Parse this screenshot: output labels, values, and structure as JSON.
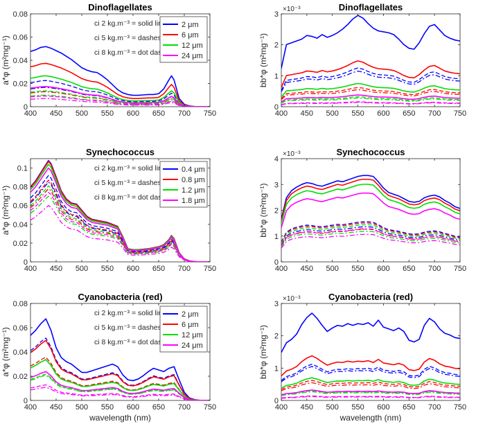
{
  "colors": {
    "c0": "#0000FF",
    "c1": "#FF0000",
    "c2": "#00DD00",
    "c3": "#FF00FF"
  },
  "chart_data": [
    {
      "type": "line",
      "quantity": "absorption",
      "title": "Dinoflagellates",
      "xlabel": "",
      "ylabel": "a*φ (m²mg⁻¹)",
      "xlim": [
        400,
        750
      ],
      "ylim": [
        0,
        0.08
      ],
      "xticks": [
        400,
        450,
        500,
        550,
        600,
        650,
        700,
        750
      ],
      "yticks": [
        0,
        0.02,
        0.04,
        0.06,
        0.08
      ],
      "ytick_labels": [
        "0",
        "0.02",
        "0.04",
        "0.06",
        "0.08"
      ],
      "multiplier": "",
      "legend": {
        "placement": "top-right",
        "entries": [
          "2 μm",
          "6 μm",
          "12 μm",
          "24 μm"
        ]
      },
      "notes": [
        "ci 2 kg.m⁻³ = solid line",
        "ci 5 kg.m⁻³ = dashes",
        "ci 8 kg.m⁻³ = dot dash"
      ],
      "x": [
        400,
        410,
        420,
        430,
        440,
        450,
        460,
        470,
        480,
        490,
        500,
        510,
        520,
        530,
        540,
        550,
        560,
        570,
        580,
        590,
        600,
        610,
        620,
        630,
        640,
        650,
        660,
        670,
        675,
        680,
        690,
        700,
        710,
        720,
        730,
        740,
        750
      ],
      "base": [
        0.68,
        0.7,
        0.73,
        0.74,
        0.72,
        0.69,
        0.66,
        0.62,
        0.58,
        0.53,
        0.48,
        0.45,
        0.43,
        0.42,
        0.38,
        0.33,
        0.27,
        0.21,
        0.17,
        0.15,
        0.14,
        0.14,
        0.145,
        0.15,
        0.15,
        0.16,
        0.22,
        0.33,
        0.38,
        0.33,
        0.1,
        0.03,
        0.01,
        0.002,
        0,
        0,
        0
      ],
      "series": [
        {
          "name": "2 μm",
          "scale": [
            0.07,
            0.0305,
            0.0225
          ]
        },
        {
          "name": "6 μm",
          "scale": [
            0.0505,
            0.0235,
            0.0175
          ]
        },
        {
          "name": "12 μm",
          "scale": [
            0.036,
            0.0185,
            0.0135
          ]
        },
        {
          "name": "24 μm",
          "scale": [
            0.0235,
            0.0125,
            0.0095
          ]
        }
      ]
    },
    {
      "type": "line",
      "quantity": "backscattering",
      "title": "Dinoflagellates",
      "xlabel": "",
      "ylabel": "bb*φ (m²mg⁻¹)",
      "xlim": [
        400,
        750
      ],
      "ylim": [
        0,
        3
      ],
      "xticks": [
        400,
        450,
        500,
        550,
        600,
        650,
        700,
        750
      ],
      "yticks": [
        0,
        1,
        2,
        3
      ],
      "ytick_labels": [
        "0",
        "1",
        "2",
        "3"
      ],
      "multiplier": "×10⁻³",
      "legend": null,
      "notes": [],
      "x": [
        400,
        410,
        420,
        430,
        440,
        450,
        460,
        470,
        480,
        490,
        500,
        510,
        520,
        530,
        540,
        550,
        560,
        570,
        580,
        590,
        600,
        610,
        620,
        630,
        640,
        650,
        660,
        670,
        680,
        690,
        700,
        710,
        720,
        730,
        740,
        750
      ],
      "base": [
        0.42,
        0.68,
        0.7,
        0.72,
        0.74,
        0.78,
        0.77,
        0.75,
        0.79,
        0.76,
        0.78,
        0.81,
        0.85,
        0.9,
        0.96,
        1.0,
        0.97,
        0.91,
        0.86,
        0.83,
        0.82,
        0.81,
        0.79,
        0.74,
        0.68,
        0.64,
        0.63,
        0.7,
        0.8,
        0.88,
        0.9,
        0.84,
        0.78,
        0.75,
        0.73,
        0.72
      ],
      "series": [
        {
          "name": "2 μm",
          "scale": [
            2.95,
            1.25,
            1.15
          ]
        },
        {
          "name": "6 μm",
          "scale": [
            1.48,
            0.62,
            0.55
          ]
        },
        {
          "name": "12 μm",
          "scale": [
            0.75,
            0.32,
            0.28
          ]
        },
        {
          "name": "24 μm",
          "scale": [
            0.38,
            0.16,
            0.14
          ]
        }
      ]
    },
    {
      "type": "line",
      "quantity": "absorption",
      "title": "Synechococcus",
      "xlabel": "",
      "ylabel": "a*φ (m²mg⁻¹)",
      "xlim": [
        400,
        750
      ],
      "ylim": [
        0,
        0.11
      ],
      "xticks": [
        400,
        450,
        500,
        550,
        600,
        650,
        700,
        750
      ],
      "yticks": [
        0,
        0.02,
        0.04,
        0.06,
        0.08,
        0.1
      ],
      "ytick_labels": [
        "0",
        "0.02",
        "0.04",
        "0.06",
        "0.08",
        "0.1"
      ],
      "multiplier": "",
      "legend": {
        "placement": "top-right",
        "entries": [
          "0.4 μm",
          "0.8 μm",
          "1.2 μm",
          "1.8 μm"
        ]
      },
      "notes": [
        "ci 2 kg.m⁻³ = solid line",
        "ci 5 kg.m⁻³ = dashes",
        "ci 8 kg.m⁻³ = dot dash"
      ],
      "x": [
        400,
        410,
        420,
        430,
        435,
        440,
        450,
        460,
        470,
        480,
        490,
        500,
        510,
        520,
        530,
        540,
        550,
        560,
        570,
        580,
        590,
        600,
        610,
        620,
        630,
        640,
        650,
        660,
        670,
        675,
        680,
        690,
        700,
        710,
        720,
        730,
        740,
        750
      ],
      "base": [
        0.74,
        0.8,
        0.88,
        0.96,
        1.0,
        0.97,
        0.84,
        0.7,
        0.62,
        0.58,
        0.57,
        0.51,
        0.45,
        0.42,
        0.41,
        0.4,
        0.39,
        0.37,
        0.35,
        0.25,
        0.13,
        0.12,
        0.12,
        0.125,
        0.13,
        0.14,
        0.15,
        0.17,
        0.22,
        0.26,
        0.23,
        0.09,
        0.03,
        0.01,
        0.003,
        0,
        0,
        0
      ],
      "series": [
        {
          "name": "0.4 μm",
          "scale": [
            0.108,
            0.092,
            0.085
          ]
        },
        {
          "name": "0.8 μm",
          "scale": [
            0.107,
            0.087,
            0.078
          ]
        },
        {
          "name": "1.2 μm",
          "scale": [
            0.104,
            0.081,
            0.07
          ]
        },
        {
          "name": "1.8 μm",
          "scale": [
            0.1,
            0.074,
            0.06
          ]
        }
      ]
    },
    {
      "type": "line",
      "quantity": "backscattering",
      "title": "Synechococcus",
      "xlabel": "",
      "ylabel": "bb*φ (m²mg⁻¹)",
      "xlim": [
        400,
        750
      ],
      "ylim": [
        0,
        4
      ],
      "xticks": [
        400,
        450,
        500,
        550,
        600,
        650,
        700,
        750
      ],
      "yticks": [
        0,
        1,
        2,
        3,
        4
      ],
      "ytick_labels": [
        "0",
        "1",
        "2",
        "3",
        "4"
      ],
      "multiplier": "×10⁻³",
      "legend": null,
      "notes": [],
      "x": [
        400,
        410,
        420,
        430,
        440,
        450,
        460,
        470,
        480,
        490,
        500,
        510,
        520,
        530,
        540,
        550,
        560,
        570,
        580,
        590,
        600,
        610,
        620,
        630,
        640,
        650,
        660,
        670,
        680,
        690,
        700,
        710,
        720,
        730,
        740,
        750
      ],
      "base": [
        0.48,
        0.72,
        0.8,
        0.84,
        0.87,
        0.89,
        0.88,
        0.86,
        0.85,
        0.87,
        0.89,
        0.91,
        0.9,
        0.92,
        0.94,
        0.96,
        0.97,
        0.97,
        0.96,
        0.9,
        0.83,
        0.78,
        0.76,
        0.74,
        0.71,
        0.68,
        0.67,
        0.68,
        0.72,
        0.74,
        0.75,
        0.73,
        0.69,
        0.66,
        0.62,
        0.6
      ],
      "series": [
        {
          "name": "0.4 μm",
          "scale": [
            3.45,
            1.6,
            1.4
          ]
        },
        {
          "name": "0.8 μm",
          "scale": [
            3.3,
            1.55,
            1.32
          ]
        },
        {
          "name": "1.2 μm",
          "scale": [
            3.1,
            1.48,
            1.22
          ]
        },
        {
          "name": "1.8 μm",
          "scale": [
            2.75,
            1.3,
            1.1
          ]
        }
      ]
    },
    {
      "type": "line",
      "quantity": "absorption",
      "title": "Cyanobacteria (red)",
      "xlabel": "wavelength (nm)",
      "ylabel": "a*φ (m²mg⁻¹)",
      "xlim": [
        400,
        750
      ],
      "ylim": [
        0,
        0.08
      ],
      "xticks": [
        400,
        450,
        500,
        550,
        600,
        650,
        700,
        750
      ],
      "yticks": [
        0,
        0.02,
        0.04,
        0.06,
        0.08
      ],
      "ytick_labels": [
        "0",
        "0.02",
        "0.04",
        "0.06",
        "0.08"
      ],
      "multiplier": "",
      "legend": {
        "placement": "top-right",
        "entries": [
          "2 μm",
          "6 μm",
          "12 μm",
          "24 μm"
        ]
      },
      "notes": [
        "ci 2 kg.m⁻³ = solid line",
        "ci 5 kg.m⁻³ = dashes",
        "ci 8 kg.m⁻³ = dot dash"
      ],
      "x": [
        400,
        410,
        420,
        430,
        440,
        450,
        460,
        470,
        480,
        490,
        500,
        510,
        520,
        530,
        540,
        550,
        560,
        570,
        580,
        590,
        600,
        610,
        620,
        630,
        640,
        650,
        660,
        670,
        680,
        690,
        700,
        710,
        720,
        730,
        740,
        750
      ],
      "base": [
        0.79,
        0.85,
        0.93,
        0.99,
        0.85,
        0.64,
        0.52,
        0.47,
        0.44,
        0.39,
        0.34,
        0.34,
        0.36,
        0.38,
        0.4,
        0.42,
        0.44,
        0.41,
        0.31,
        0.25,
        0.24,
        0.26,
        0.3,
        0.35,
        0.39,
        0.37,
        0.35,
        0.39,
        0.41,
        0.25,
        0.1,
        0.03,
        0.01,
        0.002,
        0,
        0
      ],
      "series": [
        {
          "name": "2 μm",
          "scale": [
            0.068,
            0.052,
            0.05
          ]
        },
        {
          "name": "6 μm",
          "scale": [
            0.05,
            0.036,
            0.034
          ]
        },
        {
          "name": "12 μm",
          "scale": [
            0.034,
            0.022,
            0.021
          ]
        },
        {
          "name": "24 μm",
          "scale": [
            0.024,
            0.013,
            0.011
          ]
        }
      ]
    },
    {
      "type": "line",
      "quantity": "backscattering",
      "title": "Cyanobacteria (red)",
      "xlabel": "wavelength (nm)",
      "ylabel": "bb*φ (m²mg⁻¹)",
      "xlim": [
        400,
        750
      ],
      "ylim": [
        0,
        3
      ],
      "xticks": [
        400,
        450,
        500,
        550,
        600,
        650,
        700,
        750
      ],
      "yticks": [
        0,
        1,
        2,
        3
      ],
      "ytick_labels": [
        "0",
        "1",
        "2",
        "3"
      ],
      "multiplier": "×10⁻³",
      "legend": null,
      "notes": [],
      "x": [
        400,
        410,
        420,
        430,
        440,
        450,
        460,
        470,
        480,
        490,
        500,
        510,
        520,
        530,
        540,
        550,
        560,
        570,
        580,
        590,
        600,
        610,
        620,
        630,
        640,
        650,
        660,
        670,
        680,
        690,
        700,
        710,
        720,
        730,
        740,
        750
      ],
      "base": [
        0.55,
        0.66,
        0.7,
        0.76,
        0.87,
        0.95,
        1.0,
        0.94,
        0.86,
        0.79,
        0.83,
        0.86,
        0.85,
        0.88,
        0.86,
        0.88,
        0.87,
        0.89,
        0.85,
        0.92,
        0.84,
        0.82,
        0.8,
        0.83,
        0.79,
        0.69,
        0.67,
        0.7,
        0.86,
        0.94,
        0.9,
        0.82,
        0.77,
        0.75,
        0.72,
        0.71
      ],
      "series": [
        {
          "name": "2 μm",
          "scale": [
            2.7,
            1.12,
            1.05
          ]
        },
        {
          "name": "6 μm",
          "scale": [
            1.38,
            0.62,
            0.55
          ]
        },
        {
          "name": "12 μm",
          "scale": [
            0.7,
            0.3,
            0.27
          ]
        },
        {
          "name": "24 μm",
          "scale": [
            0.32,
            0.14,
            0.12
          ]
        }
      ]
    }
  ]
}
